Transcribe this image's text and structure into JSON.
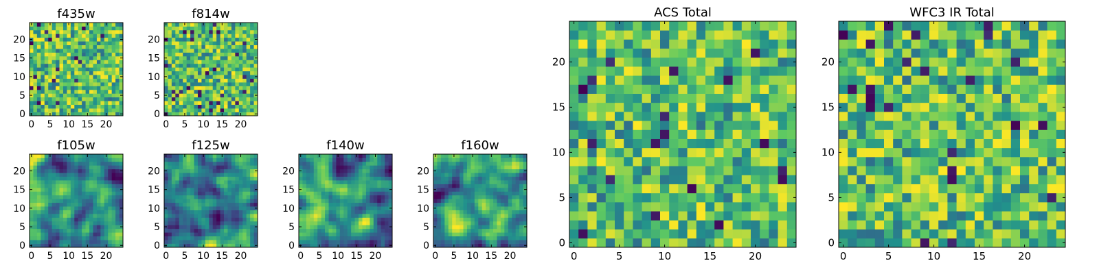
{
  "chart_data": [
    {
      "type": "heatmap",
      "title": "f435w",
      "rows": 25,
      "cols": 25,
      "xlim": [
        0,
        24
      ],
      "ylim": [
        0,
        24
      ],
      "xticks": [
        0,
        5,
        10,
        15,
        20
      ],
      "yticks": [
        0,
        5,
        10,
        15,
        20
      ],
      "texture": "fine-noise",
      "seed": 11
    },
    {
      "type": "heatmap",
      "title": "f814w",
      "rows": 25,
      "cols": 25,
      "xlim": [
        0,
        24
      ],
      "ylim": [
        0,
        24
      ],
      "xticks": [
        0,
        5,
        10,
        15,
        20
      ],
      "yticks": [
        0,
        5,
        10,
        15,
        20
      ],
      "texture": "fine-noise",
      "seed": 23
    },
    {
      "type": "heatmap",
      "title": "f105w",
      "rows": 25,
      "cols": 25,
      "xlim": [
        0,
        24
      ],
      "ylim": [
        0,
        24
      ],
      "xticks": [
        0,
        5,
        10,
        15,
        20
      ],
      "yticks": [
        0,
        5,
        10,
        15,
        20
      ],
      "texture": "smooth",
      "seed": 37
    },
    {
      "type": "heatmap",
      "title": "f125w",
      "rows": 25,
      "cols": 25,
      "xlim": [
        0,
        24
      ],
      "ylim": [
        0,
        24
      ],
      "xticks": [
        0,
        5,
        10,
        15,
        20
      ],
      "yticks": [
        0,
        5,
        10,
        15,
        20
      ],
      "texture": "smooth",
      "seed": 41
    },
    {
      "type": "heatmap",
      "title": "f140w",
      "rows": 25,
      "cols": 25,
      "xlim": [
        0,
        24
      ],
      "ylim": [
        0,
        24
      ],
      "xticks": [
        0,
        5,
        10,
        15,
        20
      ],
      "yticks": [
        0,
        5,
        10,
        15,
        20
      ],
      "texture": "smooth",
      "seed": 53
    },
    {
      "type": "heatmap",
      "title": "f160w",
      "rows": 25,
      "cols": 25,
      "xlim": [
        0,
        24
      ],
      "ylim": [
        0,
        24
      ],
      "xticks": [
        0,
        5,
        10,
        15,
        20
      ],
      "yticks": [
        0,
        5,
        10,
        15,
        20
      ],
      "texture": "smooth",
      "seed": 67
    },
    {
      "type": "heatmap",
      "title": "ACS Total",
      "rows": 25,
      "cols": 25,
      "xlim": [
        0,
        24
      ],
      "ylim": [
        0,
        24
      ],
      "xticks": [
        0,
        5,
        10,
        15,
        20
      ],
      "yticks": [
        0,
        5,
        10,
        15,
        20
      ],
      "texture": "noise",
      "seed": 79
    },
    {
      "type": "heatmap",
      "title": "WFC3 IR Total",
      "rows": 25,
      "cols": 25,
      "xlim": [
        0,
        24
      ],
      "ylim": [
        0,
        24
      ],
      "xticks": [
        0,
        5,
        10,
        15,
        20
      ],
      "yticks": [
        0,
        5,
        10,
        15,
        20
      ],
      "texture": "noise",
      "seed": 97
    }
  ],
  "colormap": [
    "#440154",
    "#3b528b",
    "#21918c",
    "#5ec962",
    "#fde725"
  ]
}
